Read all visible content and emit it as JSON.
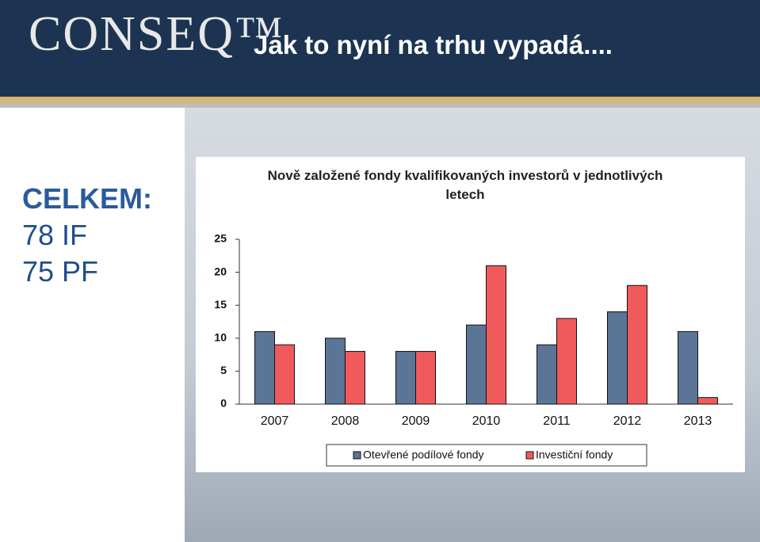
{
  "header": {
    "logo": "CONSEQ™",
    "title": "Jak to nyní na trhu vypadá...."
  },
  "summary": [
    "CELKEM:",
    "78 IF",
    "75 PF"
  ],
  "chart_data": {
    "type": "bar",
    "title": "Nově založené fondy kvalifikovaných investorů v jednotlivých letech",
    "categories": [
      "2007",
      "2008",
      "2009",
      "2010",
      "2011",
      "2012",
      "2013"
    ],
    "series": [
      {
        "name": "Otevřené podílové fondy",
        "color": "#5b7597",
        "values": [
          11,
          10,
          8,
          12,
          9,
          14,
          11
        ]
      },
      {
        "name": "Investiční fondy",
        "color": "#f15a5a",
        "values": [
          9,
          8,
          8,
          21,
          13,
          18,
          1
        ]
      }
    ],
    "ylim": [
      0,
      25
    ],
    "yticks": [
      0,
      5,
      10,
      15,
      20,
      25
    ],
    "grid": false,
    "legend": "bottom"
  }
}
